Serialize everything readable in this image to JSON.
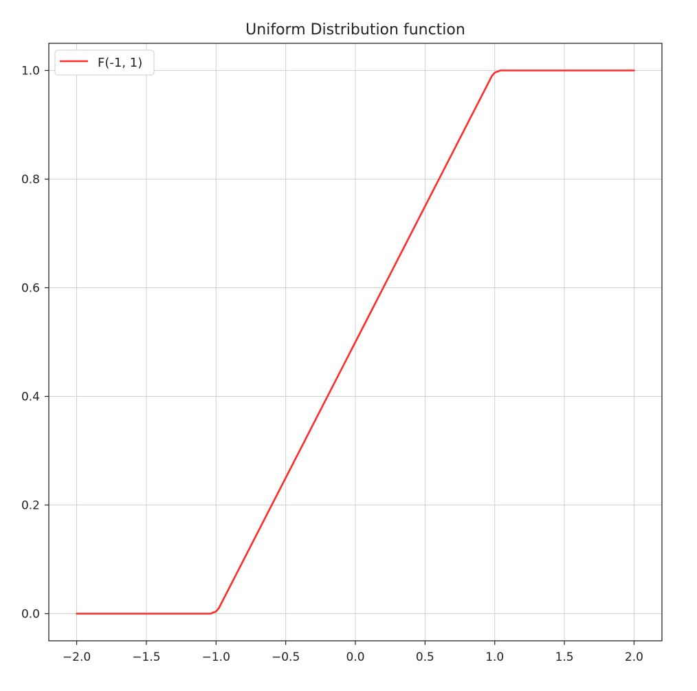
{
  "chart_data": {
    "type": "line",
    "title": "Uniform Distribution function",
    "xlabel": "",
    "ylabel": "",
    "xlim": [
      -2.2,
      2.2
    ],
    "ylim": [
      -0.05,
      1.05
    ],
    "x_ticks": [
      -2.0,
      -1.5,
      -1.0,
      -0.5,
      0.0,
      0.5,
      1.0,
      1.5,
      2.0
    ],
    "x_tick_labels": [
      "−2.0",
      "−1.5",
      "−1.0",
      "−0.5",
      "0.0",
      "0.5",
      "1.0",
      "1.5",
      "2.0"
    ],
    "y_ticks": [
      0.0,
      0.2,
      0.4,
      0.6,
      0.8,
      1.0
    ],
    "y_tick_labels": [
      "0.0",
      "0.2",
      "0.4",
      "0.6",
      "0.8",
      "1.0"
    ],
    "grid": true,
    "legend_position": "upper-left",
    "series": [
      {
        "name": "F(-1, 1)",
        "color": "#ff2a2a",
        "x": [
          -2.0,
          -1.5,
          -1.04,
          -1.0,
          -0.98,
          -0.5,
          0.0,
          0.5,
          0.98,
          1.0,
          1.04,
          1.5,
          2.0
        ],
        "y": [
          0.0,
          0.0,
          0.0,
          0.004,
          0.01,
          0.25,
          0.5,
          0.75,
          0.99,
          0.996,
          1.0,
          1.0,
          1.0
        ]
      }
    ]
  }
}
